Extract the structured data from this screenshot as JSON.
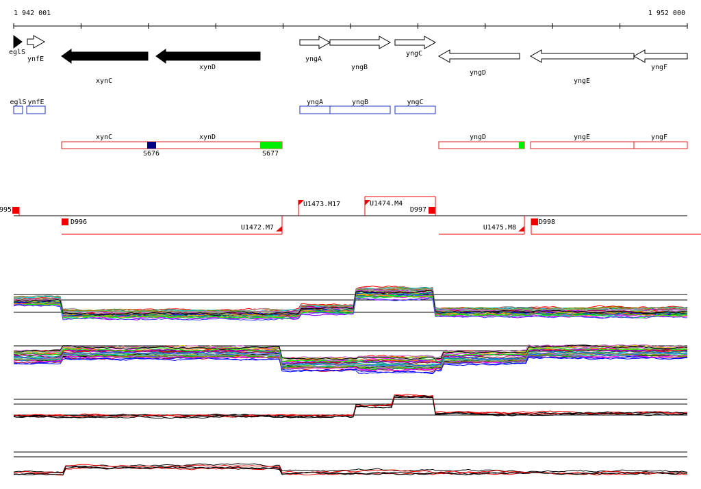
{
  "ruler": {
    "start": "1 942 001",
    "end": "1 952 000"
  },
  "genes": [
    "eglS",
    "ynfE",
    "xynC",
    "xynD",
    "yngA",
    "yngB",
    "yngC",
    "yngD",
    "yngE",
    "yngF"
  ],
  "blue_track": [
    "eglS",
    "ynfE",
    "yngA",
    "yngB",
    "yngC"
  ],
  "red_track": {
    "genes": [
      "xynC",
      "xynD",
      "yngD",
      "yngE",
      "yngF"
    ],
    "sites": [
      "S676",
      "S677"
    ]
  },
  "features": [
    "995",
    "D996",
    "U1472.M7",
    "U1473.M17",
    "U1474.M4",
    "D997",
    "U1475.M8",
    "D998"
  ]
}
